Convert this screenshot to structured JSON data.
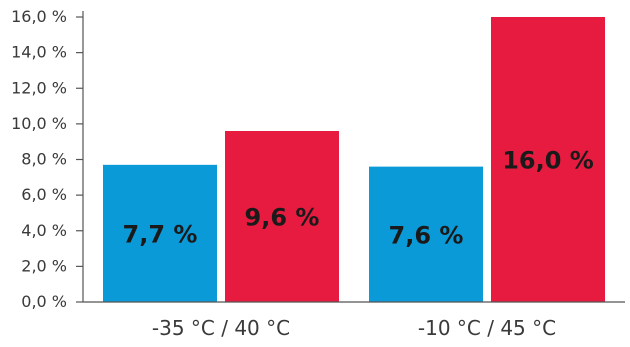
{
  "chart_data": {
    "type": "bar",
    "categories": [
      "-35 °C / 40 °C",
      "-10 °C / 45 °C"
    ],
    "series": [
      {
        "color": "#0b9ad8",
        "values": [
          7.7,
          7.6
        ],
        "labels": [
          "7,7 %",
          "7,6 %"
        ]
      },
      {
        "color": "#e71a3f",
        "values": [
          9.6,
          16.0
        ],
        "labels": [
          "9,6 %",
          "16,0 %"
        ]
      }
    ],
    "ylim": [
      0,
      16
    ],
    "yticks": [
      "0,0 %",
      "2,0 %",
      "4,0 %",
      "6,0 %",
      "8,0 %",
      "10,0 %",
      "12,0 %",
      "14,0 %",
      "16,0 %"
    ],
    "ytick_values": [
      0,
      2,
      4,
      6,
      8,
      10,
      12,
      14,
      16
    ],
    "grid": false,
    "title": "",
    "xlabel": "",
    "ylabel": ""
  }
}
